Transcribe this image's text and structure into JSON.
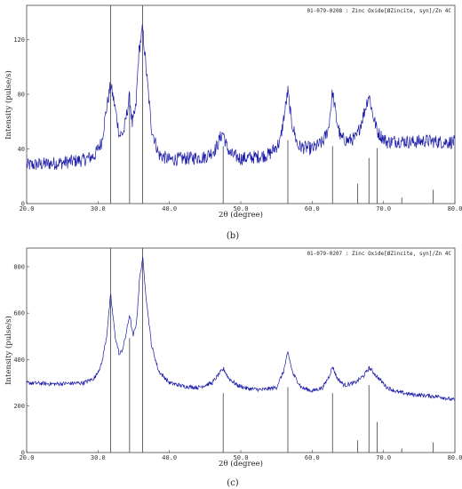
{
  "chart_data": [
    {
      "type": "line",
      "panel_label": "(b)",
      "reference_label": "01-079-0208 : Zinc Oxide[ØZincite, syn]/Zn 4C",
      "xlabel": "2θ (degree)",
      "ylabel": "Intensity (pulse/s)",
      "xlim": [
        20,
        80
      ],
      "ylim": [
        0,
        145
      ],
      "x_ticks": [
        "20.0",
        "30.0",
        "40.0",
        "50.0",
        "60.0",
        "70.0",
        "80.0"
      ],
      "y_ticks": [
        {
          "value": 0,
          "label": "0"
        },
        {
          "value": 40,
          "label": "40"
        },
        {
          "value": 80,
          "label": "80"
        },
        {
          "value": 120,
          "label": "120"
        }
      ],
      "line_color": "#1a1aa8",
      "baseline": 29,
      "series": [
        {
          "x": [
            20,
            25,
            28,
            29.5,
            30.5,
            31.2,
            31.77,
            32.4,
            33.0,
            33.6,
            34.0,
            34.42,
            34.8,
            35.3,
            35.7,
            36.25,
            36.8,
            37.5,
            38.5,
            40,
            42,
            45,
            46.5,
            47.1,
            47.54,
            48.0,
            48.6,
            50,
            52,
            54,
            55.5,
            56.1,
            56.6,
            57.1,
            58,
            60,
            61.5,
            62.3,
            62.86,
            63.4,
            64,
            65,
            66.2,
            67.2,
            67.96,
            68.5,
            69.2,
            70.5,
            72,
            74,
            76,
            78,
            80
          ],
          "y": [
            28,
            30,
            32,
            35,
            45,
            70,
            87,
            70,
            50,
            52,
            65,
            78,
            58,
            70,
            110,
            128,
            95,
            55,
            36,
            32,
            33,
            34,
            40,
            48,
            52,
            42,
            36,
            33,
            34,
            36,
            45,
            65,
            82,
            60,
            42,
            40,
            45,
            55,
            82,
            62,
            48,
            46,
            48,
            65,
            80,
            65,
            52,
            45,
            46,
            45,
            46,
            45,
            45
          ]
        }
      ],
      "reference_lines": {
        "x": [
          31.77,
          34.42,
          36.25,
          47.54,
          56.6,
          62.86,
          66.38,
          67.96,
          69.1,
          72.56,
          76.95
        ],
        "height": [
          100,
          56,
          100,
          29,
          32,
          29,
          10,
          23,
          28,
          3,
          7
        ]
      }
    },
    {
      "type": "line",
      "panel_label": "(c)",
      "reference_label": "01-079-0207 : Zinc Oxide[ØZincite, syn]/Zn 4C",
      "xlabel": "2θ (degree)",
      "ylabel": "Intensity (pulse/s)",
      "xlim": [
        20,
        80
      ],
      "ylim": [
        0,
        880
      ],
      "x_ticks": [
        "20.0",
        "30.0",
        "40.0",
        "50.0",
        "60.0",
        "70.0",
        "80.0"
      ],
      "y_ticks": [
        {
          "value": 0,
          "label": "0"
        },
        {
          "value": 200,
          "label": "200"
        },
        {
          "value": 400,
          "label": "400"
        },
        {
          "value": 600,
          "label": "600"
        },
        {
          "value": 800,
          "label": "800"
        }
      ],
      "line_color": "#1a1aa8",
      "baseline": 0,
      "series": [
        {
          "x": [
            20,
            24,
            28,
            29.5,
            30.5,
            31.2,
            31.77,
            32.4,
            33.0,
            33.5,
            34.0,
            34.42,
            34.9,
            35.4,
            35.8,
            36.25,
            36.8,
            37.5,
            38.5,
            40,
            42,
            44,
            46,
            47,
            47.6,
            48.3,
            49.5,
            51,
            53,
            55,
            56,
            56.6,
            57.3,
            58.5,
            60,
            61.5,
            62.4,
            62.86,
            63.5,
            64.5,
            66,
            67.2,
            68,
            69,
            70.5,
            72,
            74,
            76,
            78,
            80
          ],
          "y": [
            300,
            295,
            300,
            320,
            380,
            500,
            680,
            500,
            420,
            450,
            520,
            595,
            500,
            560,
            740,
            840,
            650,
            460,
            350,
            300,
            285,
            280,
            300,
            340,
            360,
            320,
            290,
            275,
            270,
            280,
            350,
            430,
            340,
            280,
            265,
            280,
            330,
            370,
            320,
            290,
            300,
            330,
            365,
            330,
            280,
            260,
            250,
            245,
            240,
            225
          ]
        }
      ],
      "reference_lines": {
        "x": [
          31.77,
          34.42,
          36.25,
          47.54,
          56.6,
          62.86,
          66.38,
          67.96,
          69.1,
          72.56,
          76.95
        ],
        "height": [
          100,
          56,
          100,
          29,
          32,
          29,
          6,
          33,
          15,
          2,
          5
        ]
      }
    }
  ]
}
